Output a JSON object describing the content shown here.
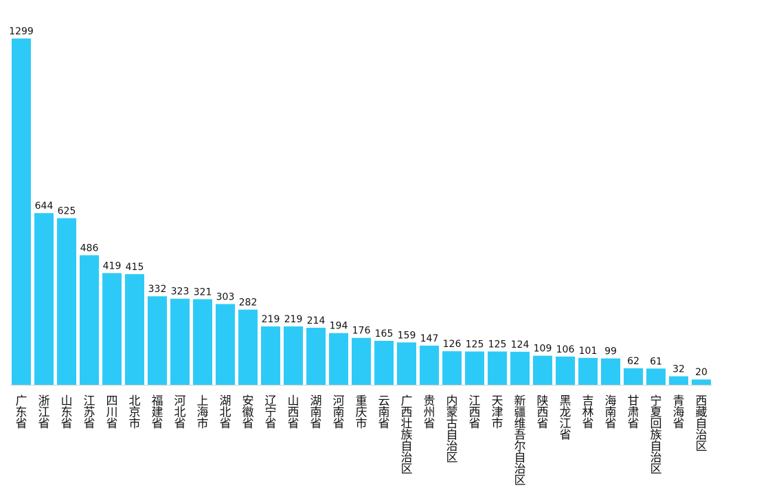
{
  "chart_data": {
    "type": "bar",
    "title": "",
    "xlabel": "",
    "ylabel": "",
    "ylim": [
      0,
      1299
    ],
    "grid": false,
    "bar_color": "#2ECAF7",
    "categories": [
      "广东省",
      "浙江省",
      "山东省",
      "江苏省",
      "四川省",
      "北京市",
      "福建省",
      "河北省",
      "上海市",
      "湖北省",
      "安徽省",
      "辽宁省",
      "山西省",
      "湖南省",
      "河南省",
      "重庆市",
      "云南省",
      "广西壮族自治区",
      "贵州省",
      "内蒙古自治区",
      "江西省",
      "天津市",
      "新疆维吾尔自治区",
      "陕西省",
      "黑龙江省",
      "吉林省",
      "海南省",
      "甘肃省",
      "宁夏回族自治区",
      "青海省",
      "西藏自治区"
    ],
    "values": [
      1299,
      644,
      625,
      486,
      419,
      415,
      332,
      323,
      321,
      303,
      282,
      219,
      219,
      214,
      194,
      176,
      165,
      159,
      147,
      126,
      125,
      125,
      124,
      109,
      106,
      101,
      99,
      62,
      61,
      32,
      20
    ]
  }
}
